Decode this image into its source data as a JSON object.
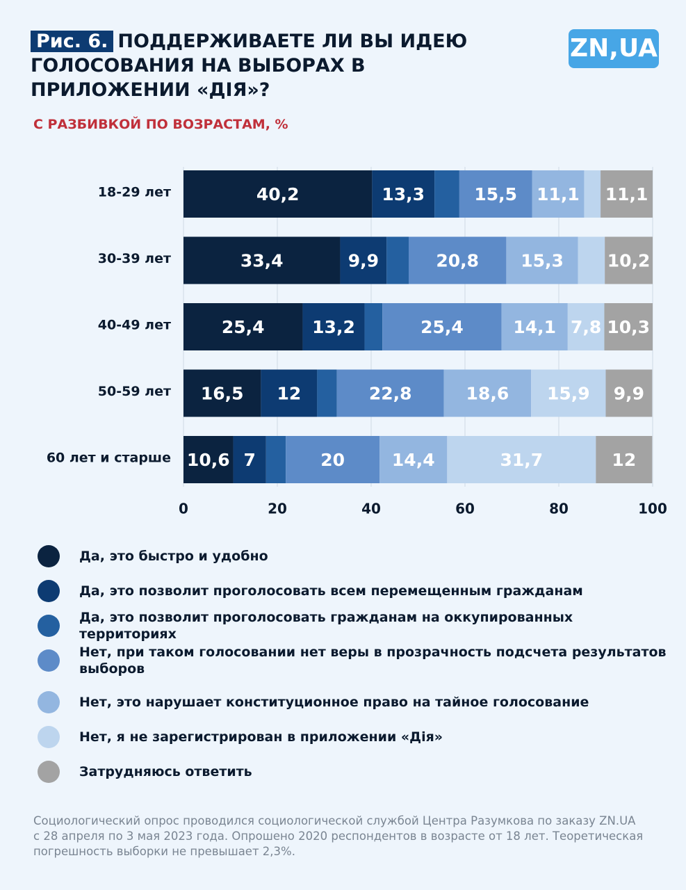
{
  "chart_data": {
    "type": "bar",
    "orientation": "horizontal",
    "stacked": true,
    "figure_label": "Рис. 6.",
    "title": "ПОДДЕРЖИВАЕТЕ ЛИ ВЫ ИДЕЮ ГОЛОСОВАНИЯ НА ВЫБОРАХ В ПРИЛОЖЕНИИ «ДІЯ»?",
    "subtitle": "С РАЗБИВКОЙ ПО ВОЗРАСТАМ, %",
    "categories": [
      "18-29 лет",
      "30-39 лет",
      "40-49 лет",
      "50-59 лет",
      "60 лет и старше"
    ],
    "series": [
      {
        "name": "Да, это быстро и удобно",
        "color": "#0b2340",
        "values": [
          40.2,
          33.4,
          25.4,
          16.5,
          10.6
        ],
        "value_labels": [
          "40,2",
          "33,4",
          "25,4",
          "16,5",
          "10,6"
        ]
      },
      {
        "name": "Да, это позволит проголосовать всем перемещенным гражданам",
        "color": "#0d3b72",
        "values": [
          13.3,
          9.9,
          13.2,
          12,
          7
        ],
        "value_labels": [
          "13,3",
          "9,9",
          "13,2",
          "12",
          "7"
        ]
      },
      {
        "name": "Да, это позволит проголосовать гражданам на оккупированных территориях",
        "color": "#2460a0",
        "values": [
          5.3,
          4.7,
          3.8,
          4.2,
          4.2
        ],
        "value_labels": [
          null,
          null,
          null,
          null,
          null
        ]
      },
      {
        "name": "Нет, при таком голосовании нет веры в прозрачность подсчета результатов выборов",
        "color": "#5d8bc8",
        "values": [
          15.5,
          20.8,
          25.4,
          22.8,
          20
        ],
        "value_labels": [
          "15,5",
          "20,8",
          "25,4",
          "22,8",
          "20"
        ]
      },
      {
        "name": "Нет, это нарушает конституционное право на тайное голосование",
        "color": "#93b6e0",
        "values": [
          11.1,
          15.3,
          14.1,
          18.6,
          14.4
        ],
        "value_labels": [
          "11,1",
          "15,3",
          "14,1",
          "18,6",
          "14,4"
        ]
      },
      {
        "name": "Нет, я не зарегистрирован в приложении «Дія»",
        "color": "#bdd5ee",
        "values": [
          3.5,
          5.7,
          7.8,
          15.9,
          31.7
        ],
        "value_labels": [
          null,
          null,
          "7,8",
          "15,9",
          "31,7"
        ]
      },
      {
        "name": "Затрудняюсь ответить",
        "color": "#a3a3a3",
        "values": [
          11.1,
          10.2,
          10.3,
          9.9,
          12
        ],
        "value_labels": [
          "11,1",
          "10,2",
          "10,3",
          "9,9",
          "12"
        ]
      }
    ],
    "xlim": [
      0,
      100
    ],
    "xticks": [
      0,
      20,
      40,
      60,
      80,
      100
    ],
    "grid": true
  },
  "logo": "ZN,UA",
  "footnote": "Социологический опрос проводился социологической службой Центра Разумкова по заказу ZN.UA с 28 апреля по 3 мая 2023 года. Опрошено 2020 респондентов в возрасте от 18 лет. Теоретическая погрешность выборки не превышает 2,3%."
}
